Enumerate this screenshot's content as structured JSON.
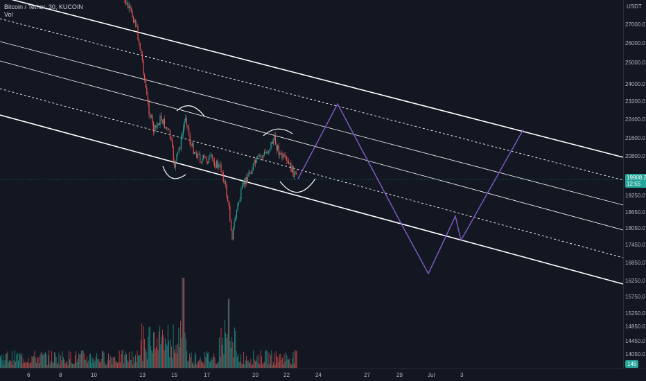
{
  "legend": {
    "title": "Bitcoin / Tether, 30, KUCOIN",
    "vol": "Vol"
  },
  "price_axis": {
    "currency": "USDT",
    "labels": [
      "27000.0",
      "26000.0",
      "25000.0",
      "24000.0",
      "23200.0",
      "22400.0",
      "21600.0",
      "20800.0",
      "19250.0",
      "18650.0",
      "18050.0",
      "17450.0",
      "16850.0",
      "16250.0",
      "15750.0",
      "15250.0",
      "14850.0",
      "14450.0",
      "14050.0"
    ],
    "last_price": "19908.2",
    "countdown": "12:55",
    "volume_tag": "145"
  },
  "time_axis": {
    "labels": [
      "6",
      "8",
      "10",
      "13",
      "15",
      "17",
      "20",
      "22",
      "24",
      "27",
      "29",
      "Jul",
      "3"
    ]
  },
  "colors": {
    "background": "#131722",
    "bull": "#26a69a",
    "bear": "#ef5350",
    "channel": "#ffffff",
    "projection": "#7e57c2",
    "last_price_line": "#26a69a"
  },
  "chart_data": {
    "type": "candlestick",
    "symbol": "Bitcoin / Tether",
    "interval": "30",
    "exchange": "KUCOIN",
    "y_unit": "USDT",
    "last_price": 19908.2,
    "price_path": [
      [
        "11",
        28200
      ],
      [
        "12",
        27400
      ],
      [
        "13",
        23800
      ],
      [
        "14",
        22200
      ],
      [
        "15",
        21800
      ],
      [
        "16",
        20600
      ],
      [
        "17",
        20300
      ],
      [
        "18",
        17700
      ],
      [
        "19",
        19900
      ],
      [
        "20",
        20500
      ],
      [
        "21",
        21200
      ],
      [
        "22",
        20200
      ],
      [
        "23",
        19908
      ]
    ],
    "drawings": {
      "channel": "descending parallel channel with dashed and solid inner median lines",
      "projection_path": [
        [
          "23",
          19908
        ],
        [
          "26",
          23000
        ],
        [
          "29",
          17900
        ],
        [
          "Jul",
          16600
        ],
        [
          "2",
          18600
        ],
        [
          "3",
          17700
        ],
        [
          "5",
          22300
        ]
      ]
    },
    "volume_scale": "separate pane at bottom"
  }
}
